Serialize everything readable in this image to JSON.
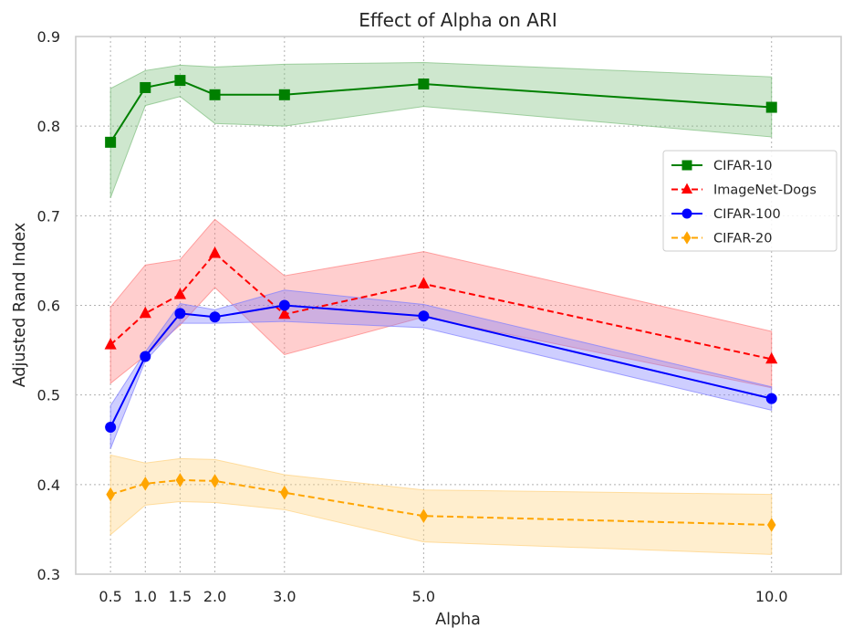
{
  "chart_data": {
    "type": "line",
    "title": "Effect of Alpha on ARI",
    "xlabel": "Alpha",
    "ylabel": "Adjusted Rand Index",
    "xlim": [
      0.0,
      11.0
    ],
    "ylim": [
      0.3,
      0.9
    ],
    "x": [
      0.5,
      1.0,
      1.5,
      2.0,
      3.0,
      5.0,
      10.0
    ],
    "xtick_labels": [
      "0.5",
      "1.0",
      "1.5",
      "2.0",
      "3.0",
      "5.0",
      "10.0"
    ],
    "yticks": [
      0.3,
      0.4,
      0.5,
      0.6,
      0.7,
      0.8,
      0.9
    ],
    "ytick_labels": [
      "0.3",
      "0.4",
      "0.5",
      "0.6",
      "0.7",
      "0.8",
      "0.9"
    ],
    "grid": true,
    "legend_position": "right",
    "series": [
      {
        "name": "CIFAR-10",
        "color": "#008000",
        "band_color": "#7fbf7f",
        "marker": "square",
        "dash": "solid",
        "values": [
          0.782,
          0.843,
          0.851,
          0.835,
          0.835,
          0.847,
          0.821
        ],
        "lower": [
          0.72,
          0.823,
          0.833,
          0.803,
          0.8,
          0.822,
          0.788
        ],
        "upper": [
          0.842,
          0.862,
          0.868,
          0.866,
          0.869,
          0.871,
          0.855
        ]
      },
      {
        "name": "ImageNet-Dogs",
        "color": "#ff0000",
        "band_color": "#ff7f7f",
        "marker": "triangle",
        "dash": "dashed",
        "values": [
          0.556,
          0.591,
          0.612,
          0.658,
          0.59,
          0.624,
          0.54
        ],
        "lower": [
          0.513,
          0.544,
          0.578,
          0.62,
          0.545,
          0.587,
          0.508
        ],
        "upper": [
          0.598,
          0.645,
          0.651,
          0.696,
          0.633,
          0.66,
          0.571
        ]
      },
      {
        "name": "CIFAR-100",
        "color": "#0000ff",
        "band_color": "#7f7fff",
        "marker": "circle",
        "dash": "solid",
        "values": [
          0.464,
          0.543,
          0.591,
          0.587,
          0.6,
          0.588,
          0.496
        ],
        "lower": [
          0.44,
          0.538,
          0.58,
          0.58,
          0.582,
          0.575,
          0.483
        ],
        "upper": [
          0.488,
          0.548,
          0.602,
          0.595,
          0.617,
          0.601,
          0.509
        ]
      },
      {
        "name": "CIFAR-20",
        "color": "#ffa500",
        "band_color": "#ffd27f",
        "marker": "diamond",
        "dash": "dashed",
        "values": [
          0.389,
          0.401,
          0.405,
          0.404,
          0.391,
          0.365,
          0.355
        ],
        "lower": [
          0.344,
          0.377,
          0.381,
          0.38,
          0.372,
          0.336,
          0.322
        ],
        "upper": [
          0.433,
          0.424,
          0.429,
          0.428,
          0.411,
          0.394,
          0.389
        ]
      }
    ]
  }
}
